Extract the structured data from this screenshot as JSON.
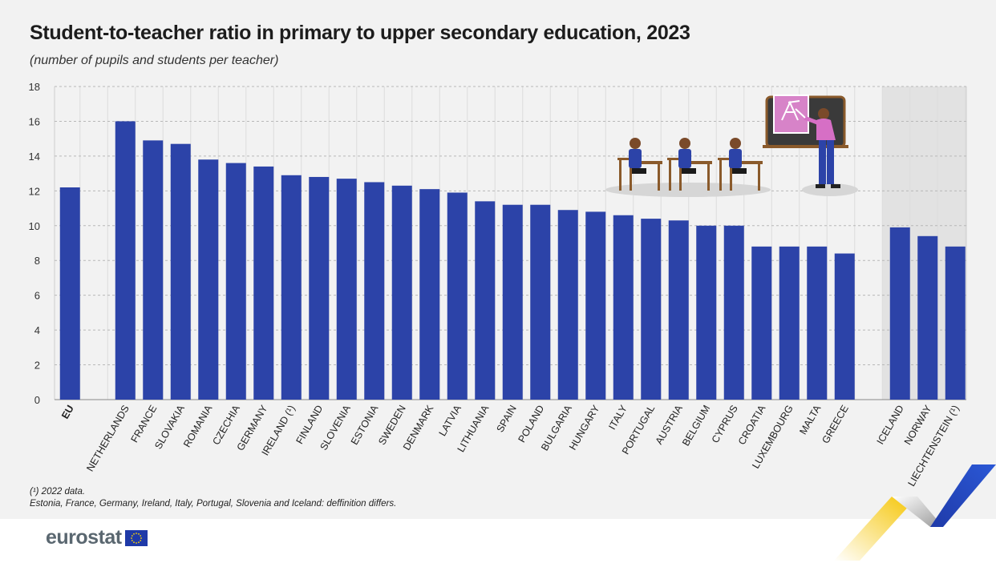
{
  "title": "Student-to-teacher ratio in primary to upper secondary education, 2023",
  "subtitle": "(number of pupils and students per teacher)",
  "chart_data": {
    "type": "bar",
    "ylim": [
      0,
      18
    ],
    "yticks": [
      0,
      2,
      4,
      6,
      8,
      10,
      12,
      14,
      16,
      18
    ],
    "grid": "horizontal dashed",
    "color": "#2c43a8",
    "groups": [
      {
        "categories": [
          "EU"
        ],
        "values": [
          12.2
        ],
        "bold": true
      },
      {
        "categories": [
          "NETHERLANDS",
          "FRANCE",
          "SLOVAKIA",
          "ROMANIA",
          "CZECHIA",
          "GERMANY",
          "IRELAND (¹)",
          "FINLAND",
          "SLOVENIA",
          "ESTONIA",
          "SWEDEN",
          "DENMARK",
          "LATVIA",
          "LITHUANIA",
          "SPAIN",
          "POLAND",
          "BULGARIA",
          "HUNGARY",
          "ITALY",
          "PORTUGAL",
          "AUSTRIA",
          "BELGIUM",
          "CYPRUS",
          "CROATIA",
          "LUXEMBOURG",
          "MALTA",
          "GREECE"
        ],
        "values": [
          16.0,
          14.9,
          14.7,
          13.8,
          13.6,
          13.4,
          12.9,
          12.8,
          12.7,
          12.5,
          12.3,
          12.1,
          11.9,
          11.4,
          11.2,
          11.2,
          10.9,
          10.8,
          10.6,
          10.4,
          10.3,
          10.0,
          10.0,
          8.8,
          8.8,
          8.8,
          8.4
        ]
      },
      {
        "categories": [
          "ICELAND",
          "NORWAY",
          "LIECHTENSTEIN (¹)"
        ],
        "values": [
          9.9,
          9.4,
          8.8
        ],
        "shaded": true
      }
    ]
  },
  "footnotes": [
    "(¹) 2022 data.",
    "Estonia, France, Germany, Ireland, Italy, Portugal, Slovenia and Iceland: deffinition differs."
  ],
  "logo": {
    "text": "eurostat",
    "icon": "eu-flag-icon"
  },
  "colors": {
    "bar": "#2c43a8",
    "background": "#f2f2f2",
    "shade": "#e2e2e2",
    "grid": "#b8b8b8"
  }
}
